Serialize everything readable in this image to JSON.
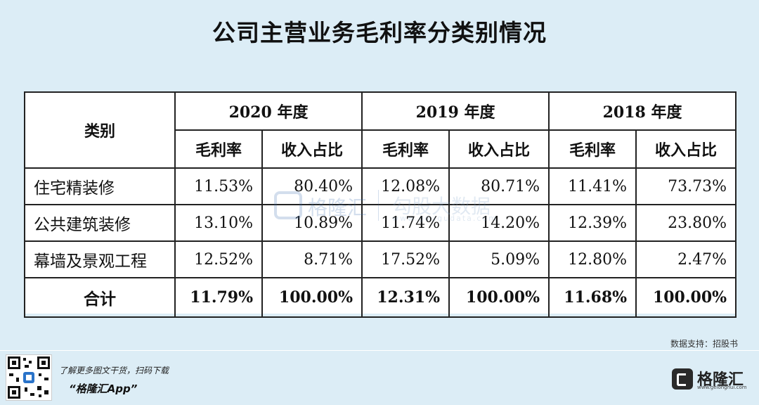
{
  "title": "公司主营业务毛利率分类别情况",
  "table": {
    "category_header": "类别",
    "years": [
      "2020 年度",
      "2019 年度",
      "2018 年度"
    ],
    "sub_headers": [
      "毛利率",
      "收入占比"
    ],
    "rows": [
      {
        "category": "住宅精装修",
        "values": [
          "11.53%",
          "80.40%",
          "12.08%",
          "80.71%",
          "11.41%",
          "73.73%"
        ]
      },
      {
        "category": "公共建筑装修",
        "values": [
          "13.10%",
          "10.89%",
          "11.74%",
          "14.20%",
          "12.39%",
          "23.80%"
        ]
      },
      {
        "category": "幕墙及景观工程",
        "values": [
          "12.52%",
          "8.71%",
          "17.52%",
          "5.09%",
          "12.80%",
          "2.47%"
        ]
      }
    ],
    "total": {
      "category": "合计",
      "values": [
        "11.79%",
        "100.00%",
        "12.31%",
        "100.00%",
        "11.68%",
        "100.00%"
      ]
    }
  },
  "watermark": {
    "brand": "格隆汇",
    "product": "勾股大数据",
    "url": "www.gougudata.com"
  },
  "source": "数据支持：招股书",
  "footer": {
    "promo_line": "了解更多图文干货，扫码下载",
    "app_name": "“格隆汇App”",
    "brand": "格隆汇",
    "brand_url": "www.gelonghui.com"
  },
  "icons": {
    "qr": "qr-code-icon",
    "brand_logo": "gelonghui-logo-icon"
  }
}
